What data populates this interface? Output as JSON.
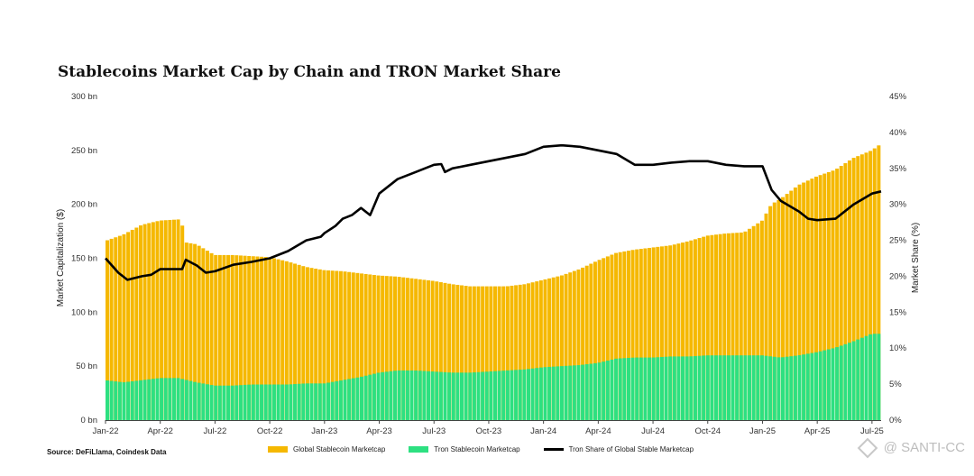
{
  "title": "Stablecoins Market Cap by Chain and TRON Market Share",
  "source": "Source: DeFiLlama, Coindesk Data",
  "watermark": "@ SANTI-CC",
  "legend": [
    {
      "label": "Global Stablecoin Marketcap",
      "color": "#f5b800",
      "kind": "box"
    },
    {
      "label": "Tron Stablecoin Marketcap",
      "color": "#2de081",
      "kind": "box"
    },
    {
      "label": "Tron Share of Global Stable Marketcap",
      "color": "#000000",
      "kind": "line"
    }
  ],
  "chart_data": {
    "type": "bar",
    "title": "Stablecoins Market Cap by Chain and TRON Market Share",
    "ylabel": "Market Capitalization ($)",
    "ylabel_right": "Market Share (%)",
    "ylim": [
      0,
      300
    ],
    "ylim_right": [
      0,
      45
    ],
    "yticks_left": [
      "0 bn",
      "50 bn",
      "100 bn",
      "150 bn",
      "200 bn",
      "250 bn",
      "300 bn"
    ],
    "yticks_right": [
      "0%",
      "5%",
      "10%",
      "15%",
      "20%",
      "25%",
      "30%",
      "35%",
      "40%",
      "45%"
    ],
    "xticks": [
      "Jan-22",
      "Apr-22",
      "Jul-22",
      "Oct-22",
      "Jan-23",
      "Apr-23",
      "Jul-23",
      "Oct-23",
      "Jan-24",
      "Apr-24",
      "Jul-24",
      "Oct-24",
      "Jan-25",
      "Apr-25",
      "Jul-25"
    ],
    "x_range": [
      0,
      42.5
    ],
    "grid": false,
    "legend_position": "bottom",
    "series": [
      {
        "name": "Global Stablecoin Marketcap",
        "type": "bar",
        "color": "#f5b800",
        "points": [
          [
            0,
            166
          ],
          [
            1,
            172
          ],
          [
            2,
            181
          ],
          [
            3,
            185
          ],
          [
            4,
            186
          ],
          [
            4.2,
            186
          ],
          [
            4.3,
            165
          ],
          [
            5,
            163
          ],
          [
            6,
            153
          ],
          [
            7,
            153
          ],
          [
            8,
            152
          ],
          [
            9,
            151
          ],
          [
            10,
            147
          ],
          [
            11,
            142
          ],
          [
            12,
            139
          ],
          [
            13,
            138
          ],
          [
            14,
            136
          ],
          [
            15,
            134
          ],
          [
            16,
            133
          ],
          [
            17,
            131
          ],
          [
            18,
            129
          ],
          [
            19,
            126
          ],
          [
            20,
            124
          ],
          [
            21,
            124
          ],
          [
            22,
            124
          ],
          [
            23,
            126
          ],
          [
            24,
            130
          ],
          [
            25,
            134
          ],
          [
            26,
            140
          ],
          [
            27,
            148
          ],
          [
            28,
            155
          ],
          [
            29,
            158
          ],
          [
            30,
            160
          ],
          [
            31,
            162
          ],
          [
            32,
            166
          ],
          [
            33,
            171
          ],
          [
            34,
            173
          ],
          [
            35,
            174
          ],
          [
            36,
            185
          ],
          [
            36.5,
            200
          ],
          [
            37,
            205
          ],
          [
            38,
            218
          ],
          [
            39,
            226
          ],
          [
            40,
            232
          ],
          [
            41,
            243
          ],
          [
            42,
            250
          ],
          [
            42.5,
            256
          ]
        ]
      },
      {
        "name": "Tron Stablecoin Marketcap",
        "type": "bar",
        "color": "#2de081",
        "points": [
          [
            0,
            37
          ],
          [
            1,
            35
          ],
          [
            2,
            37
          ],
          [
            3,
            39
          ],
          [
            4,
            39
          ],
          [
            5,
            35
          ],
          [
            6,
            32
          ],
          [
            7,
            32
          ],
          [
            8,
            33
          ],
          [
            9,
            33
          ],
          [
            10,
            33
          ],
          [
            11,
            34
          ],
          [
            12,
            34
          ],
          [
            13,
            37
          ],
          [
            14,
            40
          ],
          [
            15,
            44
          ],
          [
            16,
            46
          ],
          [
            17,
            46
          ],
          [
            18,
            45
          ],
          [
            19,
            44
          ],
          [
            20,
            44
          ],
          [
            21,
            45
          ],
          [
            22,
            46
          ],
          [
            23,
            47
          ],
          [
            24,
            49
          ],
          [
            25,
            50
          ],
          [
            26,
            51
          ],
          [
            27,
            53
          ],
          [
            28,
            57
          ],
          [
            29,
            58
          ],
          [
            30,
            58
          ],
          [
            31,
            59
          ],
          [
            32,
            59
          ],
          [
            33,
            60
          ],
          [
            34,
            60
          ],
          [
            35,
            60
          ],
          [
            36,
            60
          ],
          [
            37,
            58
          ],
          [
            38,
            60
          ],
          [
            39,
            63
          ],
          [
            40,
            67
          ],
          [
            41,
            73
          ],
          [
            42,
            80
          ],
          [
            42.5,
            80
          ]
        ]
      },
      {
        "name": "Tron Share of Global Stable Marketcap",
        "type": "line",
        "axis": "right",
        "color": "#000000",
        "points": [
          [
            0,
            22.5
          ],
          [
            0.7,
            20.5
          ],
          [
            1.2,
            19.5
          ],
          [
            2,
            20
          ],
          [
            2.5,
            20.2
          ],
          [
            3,
            21
          ],
          [
            4,
            21
          ],
          [
            4.2,
            21
          ],
          [
            4.4,
            22.3
          ],
          [
            5,
            21.5
          ],
          [
            5.5,
            20.5
          ],
          [
            6,
            20.7
          ],
          [
            7,
            21.6
          ],
          [
            8,
            22
          ],
          [
            9,
            22.5
          ],
          [
            10,
            23.5
          ],
          [
            11,
            25
          ],
          [
            11.8,
            25.5
          ],
          [
            12,
            26
          ],
          [
            12.6,
            27
          ],
          [
            13,
            28
          ],
          [
            13.5,
            28.5
          ],
          [
            14,
            29.5
          ],
          [
            14.5,
            28.5
          ],
          [
            15,
            31.5
          ],
          [
            16,
            33.5
          ],
          [
            17,
            34.5
          ],
          [
            17.5,
            35
          ],
          [
            18,
            35.5
          ],
          [
            18.4,
            35.6
          ],
          [
            18.6,
            34.5
          ],
          [
            19,
            35
          ],
          [
            20,
            35.5
          ],
          [
            21,
            36
          ],
          [
            22,
            36.5
          ],
          [
            23,
            37
          ],
          [
            24,
            38
          ],
          [
            25,
            38.2
          ],
          [
            26,
            38
          ],
          [
            27,
            37.5
          ],
          [
            28,
            37
          ],
          [
            29,
            35.5
          ],
          [
            30,
            35.5
          ],
          [
            31,
            35.8
          ],
          [
            32,
            36
          ],
          [
            33,
            36
          ],
          [
            34,
            35.5
          ],
          [
            35,
            35.3
          ],
          [
            36,
            35.3
          ],
          [
            36.5,
            32
          ],
          [
            37,
            30.5
          ],
          [
            38,
            29
          ],
          [
            38.5,
            28
          ],
          [
            39,
            27.8
          ],
          [
            40,
            28
          ],
          [
            41,
            30
          ],
          [
            42,
            31.5
          ],
          [
            42.5,
            31.8
          ]
        ]
      }
    ]
  }
}
